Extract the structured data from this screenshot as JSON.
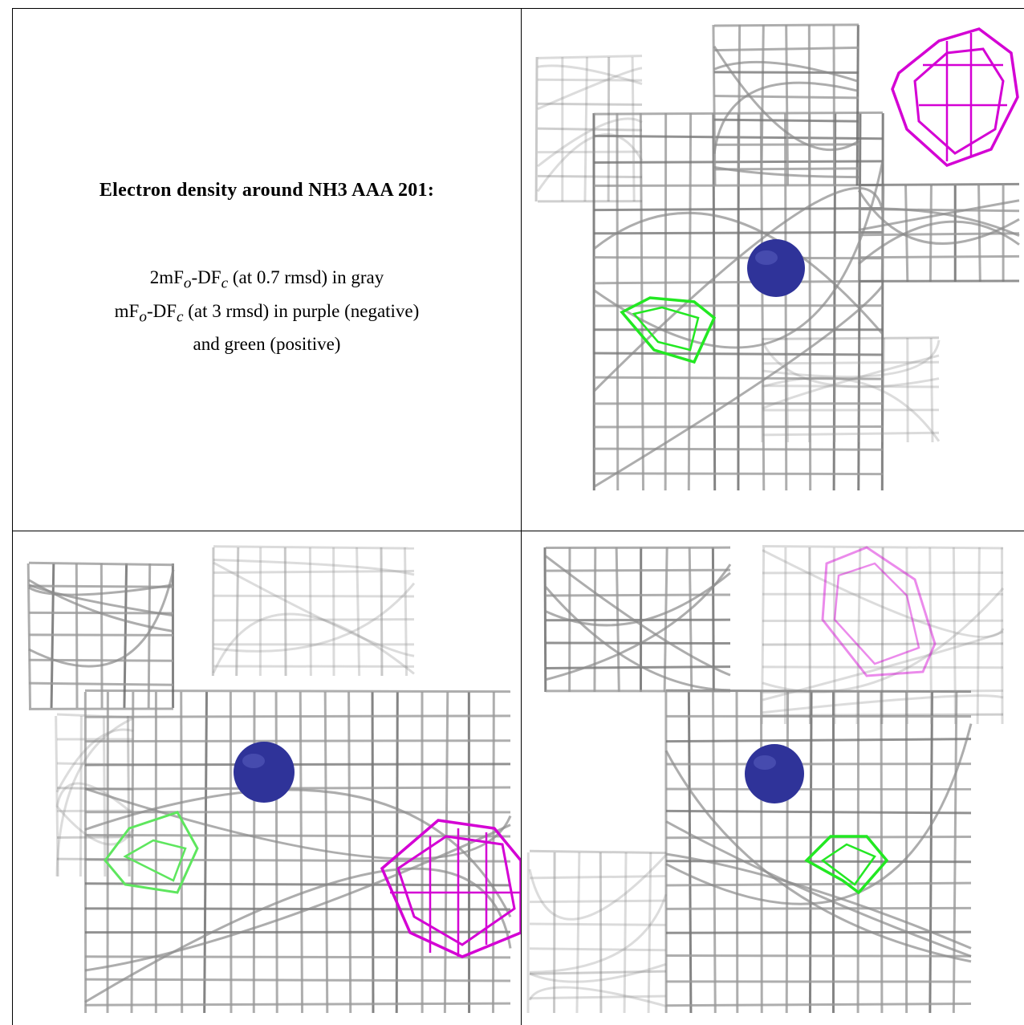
{
  "legend": {
    "title": "Electron density around NH3 AAA 201:",
    "line1": {
      "a": "2mF",
      "a_sub": "o",
      "b": "-DF",
      "b_sub": "c",
      "rest": " (at 0.7 rmsd) in gray"
    },
    "line2": {
      "a": "mF",
      "a_sub": "o",
      "b": "-DF",
      "b_sub": "c",
      "rest": " (at 3 rmsd) in purple (negative)"
    },
    "line3": "and green (positive)"
  },
  "colors": {
    "mesh_2fofc": "#9a9a9a",
    "mesh_fofc_negative": "#d400d4",
    "mesh_fofc_positive": "#22e822",
    "atom": "#2f3399",
    "border": "#000000"
  },
  "panels": [
    {
      "name": "view-top-right",
      "atom": "NH3 AAA 201"
    },
    {
      "name": "view-bottom-left",
      "atom": "NH3 AAA 201"
    },
    {
      "name": "view-bottom-right",
      "atom": "NH3 AAA 201"
    }
  ]
}
